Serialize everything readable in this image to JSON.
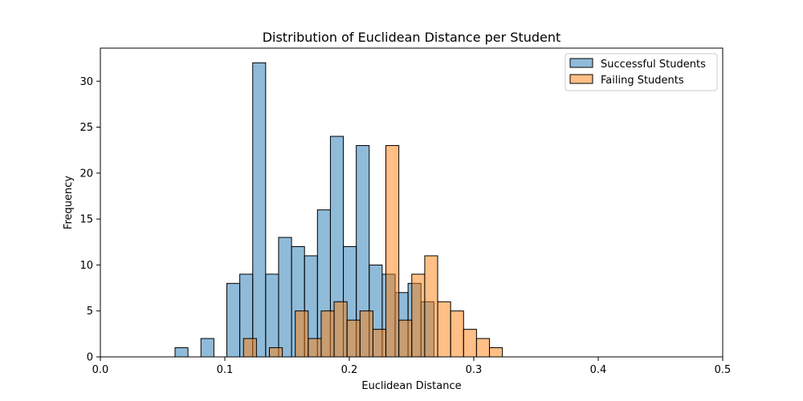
{
  "chart_data": {
    "type": "bar",
    "title": "Distribution of Euclidean Distance per Student",
    "xlabel": "Euclidean Distance",
    "ylabel": "Frequency",
    "xlim": [
      0.0,
      0.5
    ],
    "ylim": [
      0,
      33.6
    ],
    "xticks": [
      0.0,
      0.1,
      0.2,
      0.3,
      0.4,
      0.5
    ],
    "xtick_labels": [
      "0.0",
      "0.1",
      "0.2",
      "0.3",
      "0.4",
      "0.5"
    ],
    "yticks": [
      0,
      5,
      10,
      15,
      20,
      25,
      30
    ],
    "ytick_labels": [
      "0",
      "5",
      "10",
      "15",
      "20",
      "25",
      "30"
    ],
    "bin_width": 0.0104,
    "legend_position": "top-right",
    "series": [
      {
        "name": "Successful Students",
        "color": "#1f77b4",
        "bins": [
          {
            "x0": 0.06,
            "value": 1
          },
          {
            "x0": 0.0704,
            "value": 0
          },
          {
            "x0": 0.0808,
            "value": 2
          },
          {
            "x0": 0.0912,
            "value": 0
          },
          {
            "x0": 0.1016,
            "value": 8
          },
          {
            "x0": 0.112,
            "value": 9
          },
          {
            "x0": 0.1224,
            "value": 32
          },
          {
            "x0": 0.1328,
            "value": 9
          },
          {
            "x0": 0.1432,
            "value": 13
          },
          {
            "x0": 0.1536,
            "value": 12
          },
          {
            "x0": 0.164,
            "value": 11
          },
          {
            "x0": 0.1744,
            "value": 16
          },
          {
            "x0": 0.1848,
            "value": 24
          },
          {
            "x0": 0.1952,
            "value": 12
          },
          {
            "x0": 0.2056,
            "value": 23
          },
          {
            "x0": 0.216,
            "value": 10
          },
          {
            "x0": 0.2264,
            "value": 9
          },
          {
            "x0": 0.2368,
            "value": 7
          },
          {
            "x0": 0.2472,
            "value": 8
          },
          {
            "x0": 0.2576,
            "value": 6
          }
        ]
      },
      {
        "name": "Failing Students",
        "color": "#ff7f0e",
        "bins": [
          {
            "x0": 0.115,
            "value": 2
          },
          {
            "x0": 0.1254,
            "value": 0
          },
          {
            "x0": 0.1358,
            "value": 1
          },
          {
            "x0": 0.1462,
            "value": 0
          },
          {
            "x0": 0.1566,
            "value": 5
          },
          {
            "x0": 0.167,
            "value": 2
          },
          {
            "x0": 0.1774,
            "value": 5
          },
          {
            "x0": 0.1878,
            "value": 6
          },
          {
            "x0": 0.1982,
            "value": 4
          },
          {
            "x0": 0.2086,
            "value": 5
          },
          {
            "x0": 0.219,
            "value": 3
          },
          {
            "x0": 0.2294,
            "value": 23
          },
          {
            "x0": 0.2398,
            "value": 4
          },
          {
            "x0": 0.2502,
            "value": 9
          },
          {
            "x0": 0.2606,
            "value": 11
          },
          {
            "x0": 0.271,
            "value": 6
          },
          {
            "x0": 0.2814,
            "value": 5
          },
          {
            "x0": 0.2918,
            "value": 3
          },
          {
            "x0": 0.3022,
            "value": 2
          },
          {
            "x0": 0.3126,
            "value": 1
          }
        ]
      }
    ]
  }
}
